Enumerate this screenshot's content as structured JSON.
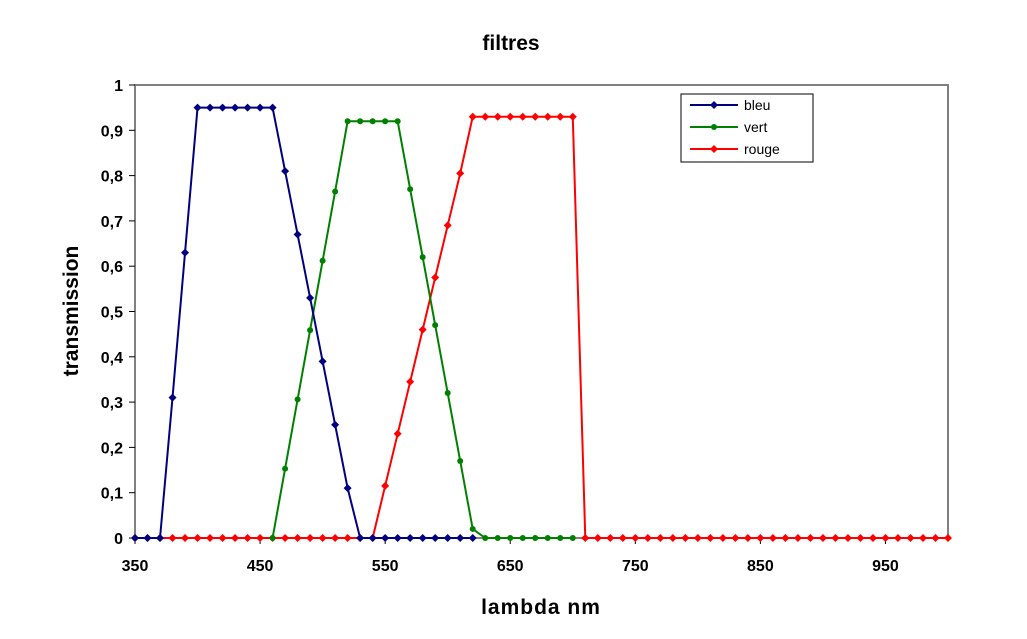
{
  "chart_data": {
    "type": "line",
    "title": "filtres",
    "xlabel": "lambda nm",
    "ylabel": "transmission",
    "xlim": [
      350,
      1000
    ],
    "ylim": [
      0,
      1
    ],
    "x_ticks": [
      350,
      450,
      550,
      650,
      750,
      850,
      950
    ],
    "y_ticks": [
      0,
      0.1,
      0.2,
      0.3,
      0.4,
      0.5,
      0.6,
      0.7,
      0.8,
      0.9,
      1
    ],
    "y_tick_labels": [
      "0",
      "0,1",
      "0,2",
      "0,3",
      "0,4",
      "0,5",
      "0,6",
      "0,7",
      "0,8",
      "0,9",
      "1"
    ],
    "x_tick_labels": [
      "350",
      "450",
      "550",
      "650",
      "750",
      "850",
      "950"
    ],
    "grid": false,
    "legend_position": "top-right",
    "x": [
      350,
      360,
      370,
      380,
      390,
      400,
      410,
      420,
      430,
      440,
      450,
      460,
      470,
      480,
      490,
      500,
      510,
      520,
      530,
      540,
      550,
      560,
      570,
      580,
      590,
      600,
      610,
      620,
      630,
      640,
      650,
      660,
      670,
      680,
      690,
      700,
      710,
      720,
      730,
      740,
      750,
      760,
      770,
      780,
      790,
      800,
      810,
      820,
      830,
      840,
      850,
      860,
      870,
      880,
      890,
      900,
      910,
      920,
      930,
      940,
      950,
      960,
      970,
      980,
      990,
      1000
    ],
    "series": [
      {
        "name": "bleu",
        "color": "#000080",
        "marker": "diamond",
        "values": [
          0,
          0,
          0,
          0.31,
          0.63,
          0.95,
          0.95,
          0.95,
          0.95,
          0.95,
          0.95,
          0.95,
          0.81,
          0.67,
          0.53,
          0.39,
          0.25,
          0.11,
          0,
          0,
          0,
          0,
          0,
          0,
          0,
          0,
          0,
          0,
          null,
          null,
          null,
          null,
          null,
          null,
          null,
          null,
          null,
          null,
          null,
          null,
          null,
          null,
          null,
          null,
          null,
          null,
          null,
          null,
          null,
          null,
          null,
          null,
          null,
          null,
          null,
          null,
          null,
          null,
          null,
          null,
          null,
          null,
          null,
          null,
          null,
          null
        ]
      },
      {
        "name": "vert",
        "color": "#008000",
        "marker": "circle",
        "values": [
          null,
          null,
          null,
          null,
          null,
          null,
          null,
          null,
          null,
          null,
          null,
          0,
          0.153,
          0.306,
          0.459,
          0.612,
          0.765,
          0.92,
          0.92,
          0.92,
          0.92,
          0.92,
          0.77,
          0.62,
          0.47,
          0.32,
          0.17,
          0.02,
          0,
          0,
          0,
          0,
          0,
          0,
          0,
          0,
          null,
          null,
          null,
          null,
          null,
          null,
          null,
          null,
          null,
          null,
          null,
          null,
          null,
          null,
          null,
          null,
          null,
          null,
          null,
          null,
          null,
          null,
          null,
          null,
          null,
          null,
          null,
          null,
          null,
          null
        ]
      },
      {
        "name": "rouge",
        "color": "#ff0000",
        "marker": "diamond",
        "values": [
          0,
          0,
          0,
          0,
          0,
          0,
          0,
          0,
          0,
          0,
          0,
          0,
          0,
          0,
          0,
          0,
          0,
          0,
          0,
          0,
          0.115,
          0.23,
          0.345,
          0.46,
          0.575,
          0.69,
          0.805,
          0.93,
          0.93,
          0.93,
          0.93,
          0.93,
          0.93,
          0.93,
          0.93,
          0.93,
          0,
          0,
          0,
          0,
          0,
          0,
          0,
          0,
          0,
          0,
          0,
          0,
          0,
          0,
          0,
          0,
          0,
          0,
          0,
          0,
          0,
          0,
          0,
          0,
          0,
          0,
          0,
          0,
          0,
          0
        ]
      }
    ]
  }
}
